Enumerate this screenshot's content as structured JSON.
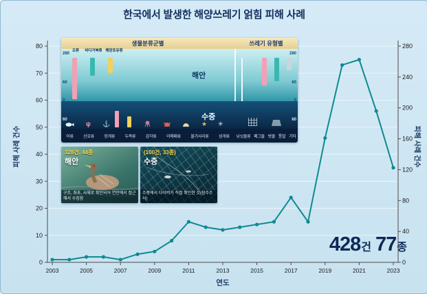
{
  "title": "한국에서 발생한 해양쓰레기 얽힘 피해 사례",
  "axes": {
    "y_left_label": "피해 사례 건수",
    "y_right_label": "피해 사례 건수",
    "x_label": "연도"
  },
  "chart_data": {
    "type": "line",
    "title": "한국에서 발생한 해양쓰레기 얽힘 피해 사례",
    "xlabel": "연도",
    "ylabel": "피해 사례 건수",
    "x": [
      2003,
      2004,
      2005,
      2006,
      2007,
      2008,
      2009,
      2010,
      2011,
      2012,
      2013,
      2014,
      2015,
      2016,
      2017,
      2018,
      2019,
      2020,
      2021,
      2022,
      2023
    ],
    "values": [
      1,
      1,
      2,
      2,
      1,
      3,
      4,
      8,
      15,
      13,
      12,
      13,
      14,
      15,
      24,
      15,
      46,
      73,
      75,
      56,
      35
    ],
    "x_ticks": [
      2003,
      2005,
      2007,
      2009,
      2011,
      2013,
      2015,
      2017,
      2019,
      2021,
      2023
    ],
    "y_left_ticks": [
      0,
      10,
      20,
      30,
      40,
      50,
      60,
      70,
      80
    ],
    "y_right_ticks": [
      0,
      40,
      80,
      120,
      160,
      200,
      240,
      280
    ],
    "ylim_left": [
      0,
      80
    ],
    "ylim_right": [
      0,
      280
    ],
    "line_color": "#0d8a8f",
    "grid": true,
    "legend_position": "none",
    "annotation": "428건 77종"
  },
  "inset": {
    "section_left_title": "생물분류군별",
    "section_right_title": "쓰레기 유형별",
    "coast_label": "해안",
    "underwater_label": "수중",
    "top_categories": [
      "조류",
      "바다거북류",
      "해양포유류"
    ],
    "bottom_categories_bio": [
      "어류",
      "산호류",
      "멍게류",
      "두족류",
      "갑각류",
      "이매패류",
      "불가사리류",
      "성게류"
    ],
    "bottom_categories_debris": [
      "낚싯줄류",
      "폐그물",
      "밧줄",
      "통발",
      "기타"
    ],
    "left_ticks": [
      "280",
      "60",
      "0",
      "60"
    ],
    "right_ticks": [
      "280",
      "60",
      "0",
      "60"
    ]
  },
  "photos": {
    "coast": {
      "count_text": "328건, 44종",
      "label": "해안",
      "caption": "구조, 좌초, 사체로 확인되어 연안에서 접근해서 수집함"
    },
    "underwater": {
      "count_text": "(100건, 33종)",
      "label": "수중",
      "caption": "수중에서 다이버가 직접 확인한 것(잠수조사)"
    }
  },
  "stats": {
    "cases_value": "428",
    "cases_unit": "건",
    "species_value": "77",
    "species_unit": "종"
  }
}
